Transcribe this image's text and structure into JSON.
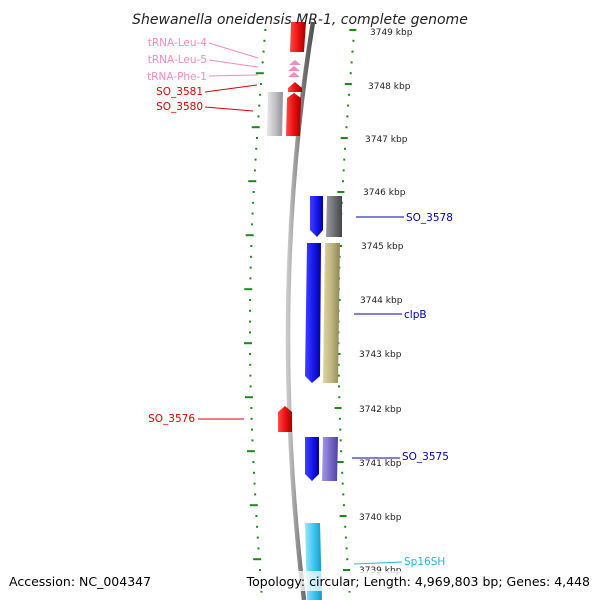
{
  "title": "Shewanella oneidensis MR-1, complete genome",
  "footer": {
    "accession": "Accession: NC_004347",
    "topology": "Topology: circular; Length: 4,969,803 bp; Genes: 4,448"
  },
  "scale": {
    "unit": "kbp",
    "ticks": [
      "3749 kbp",
      "3748 kbp",
      "3747 kbp",
      "3746 kbp",
      "3745 kbp",
      "3744 kbp",
      "3743 kbp",
      "3742 kbp",
      "3741 kbp",
      "3740 kbp",
      "3739 kbp"
    ]
  },
  "labels": {
    "left": [
      {
        "text": "tRNA-Leu-4",
        "color": "#f08cc0"
      },
      {
        "text": "tRNA-Leu-5",
        "color": "#f08cc0"
      },
      {
        "text": "tRNA-Phe-1",
        "color": "#f08cc0"
      },
      {
        "text": "SO_3581",
        "color": "#e00000"
      },
      {
        "text": "SO_3580",
        "color": "#e00000"
      },
      {
        "text": "SO_3576",
        "color": "#e00000"
      }
    ],
    "right": [
      {
        "text": "SO_3578",
        "color": "#0000c0"
      },
      {
        "text": "clpB",
        "color": "#0000c0"
      },
      {
        "text": "SO_3575",
        "color": "#0000c0"
      },
      {
        "text": "Sp16SH",
        "color": "#22b8e0"
      }
    ]
  },
  "colors": {
    "backbone": "#808080",
    "tick_marks": "#1a8a1a",
    "reverse_cds": "#ee1111",
    "forward_cds": "#1a1aee",
    "trna": "#f08cc0",
    "gene_grey": "#c0c0c8",
    "gene_dark_grey": "#707078",
    "gene_khaki": "#bfb680",
    "gene_lavender": "#7a6cc8",
    "rrna_cyan": "#40c8f0"
  }
}
